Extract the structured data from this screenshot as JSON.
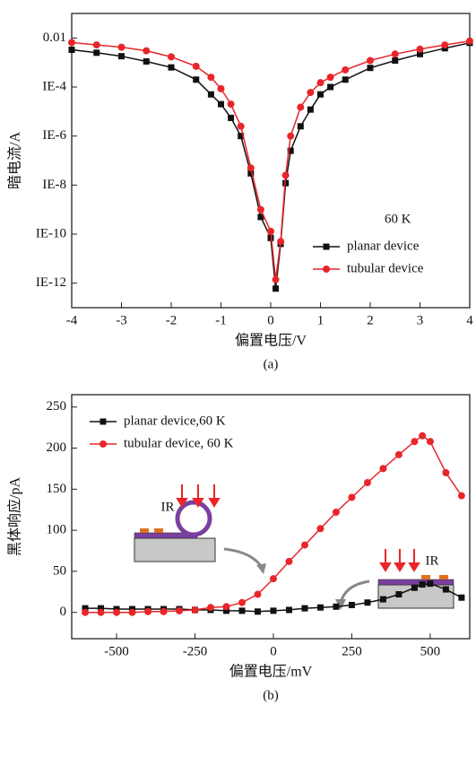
{
  "chart_data": [
    {
      "type": "line",
      "log_y": true,
      "legend": "lower right",
      "x_label": "偏置电压/V",
      "y_label": "暗电流/A",
      "caption": "(a)",
      "annotations": [
        "60 K"
      ],
      "xlim": [
        -4,
        4
      ],
      "xticks": [
        -4,
        -3,
        -2,
        -1,
        0,
        1,
        2,
        3,
        4
      ],
      "ylim": [
        1e-13,
        0.1
      ],
      "yticks": [
        0.01,
        {
          "value": 0.0001,
          "label": "IE-4"
        },
        {
          "value": 1e-06,
          "label": "IE-6"
        },
        {
          "value": 1e-08,
          "label": "IE-8"
        },
        {
          "value": 1e-10,
          "label": "IE-10"
        },
        {
          "value": 1e-12,
          "label": "IE-12"
        }
      ],
      "x": [
        -4,
        -3.5,
        -3,
        -2.5,
        -2,
        -1.5,
        -1.2,
        -1,
        -0.8,
        -0.6,
        -0.4,
        -0.2,
        0,
        0.1,
        0.2,
        0.3,
        0.4,
        0.6,
        0.8,
        1,
        1.2,
        1.5,
        2,
        2.5,
        3,
        3.5,
        4
      ],
      "series": [
        {
          "name": "planar device",
          "color": "#111111",
          "marker": "square",
          "values": [
            0.0033,
            0.0025,
            0.0018,
            0.0011,
            0.00063,
            0.0002,
            5e-05,
            2e-05,
            5.5e-06,
            1e-06,
            3e-08,
            5e-10,
            7e-11,
            6e-13,
            4e-11,
            1.2e-08,
            2.5e-07,
            2.5e-06,
            1.2e-05,
            5e-05,
            0.0001,
            0.0002,
            0.0006,
            0.0012,
            0.0022,
            0.0038,
            0.0063
          ]
        },
        {
          "name": "tubular device",
          "color": "#e8262a",
          "marker": "circle",
          "values": [
            0.0065,
            0.0052,
            0.0042,
            0.003,
            0.0017,
            0.0007,
            0.00025,
            8.5e-05,
            2e-05,
            2.5e-06,
            5e-08,
            1e-09,
            1.3e-10,
            1.4e-12,
            5e-11,
            2.5e-08,
            1e-06,
            1.5e-05,
            6e-05,
            0.00015,
            0.00025,
            0.0005,
            0.0012,
            0.0022,
            0.0035,
            0.0052,
            0.0075
          ]
        }
      ]
    },
    {
      "type": "line",
      "legend": "upper left",
      "x_label": "偏置电压/mV",
      "y_label": "黑体响应/pA",
      "caption": "(b)",
      "annotations": [
        "IR",
        "IR"
      ],
      "xlim": [
        -643,
        626
      ],
      "xticks": [
        -500,
        -250,
        0,
        250,
        500
      ],
      "ylim": [
        -32,
        265
      ],
      "yticks": [
        0,
        50,
        100,
        150,
        200,
        250
      ],
      "x": [
        -600,
        -550,
        -500,
        -450,
        -400,
        -350,
        -300,
        -250,
        -200,
        -150,
        -100,
        -50,
        0,
        50,
        100,
        150,
        200,
        250,
        300,
        350,
        400,
        450,
        475,
        500,
        550,
        600
      ],
      "series": [
        {
          "name": "planar device,60 K",
          "color": "#111111",
          "marker": "square",
          "values": [
            5,
            5,
            4,
            4,
            4,
            4,
            4,
            3,
            3,
            2,
            2,
            1,
            2,
            3,
            5,
            6,
            7,
            9,
            12,
            16,
            22,
            30,
            34,
            35,
            28,
            18
          ]
        },
        {
          "name": "tubular device, 60 K",
          "color": "#e8262a",
          "marker": "circle",
          "values": [
            0,
            0,
            0,
            0,
            1,
            1,
            2,
            3,
            6,
            7,
            12,
            22,
            41,
            62,
            82,
            102,
            122,
            140,
            158,
            175,
            192,
            208,
            215,
            208,
            170,
            142
          ]
        }
      ]
    }
  ]
}
